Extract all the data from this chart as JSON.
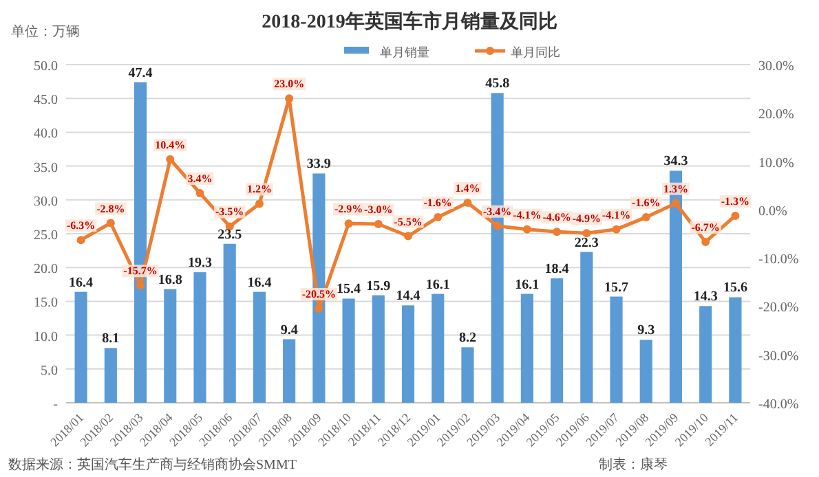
{
  "chart_data": {
    "type": "bar",
    "title": "2018-2019年英国车市月销量及同比",
    "ylabel": "单位：万辆",
    "categories": [
      "2018/01",
      "2018/02",
      "2018/03",
      "2018/04",
      "2018/05",
      "2018/06",
      "2018/07",
      "2018/08",
      "2018/09",
      "2018/10",
      "2018/11",
      "2018/12",
      "2019/01",
      "2019/02",
      "2019/03",
      "2019/04",
      "2019/05",
      "2019/06",
      "2019/07",
      "2019/08",
      "2019/09",
      "2019/10",
      "2019/11"
    ],
    "series": [
      {
        "name": "单月销量",
        "color": "#5b9bd5",
        "values": [
          16.4,
          8.1,
          47.4,
          16.8,
          19.3,
          23.5,
          16.4,
          9.4,
          33.9,
          15.4,
          15.9,
          14.4,
          16.1,
          8.2,
          45.8,
          16.1,
          18.4,
          22.3,
          15.7,
          9.3,
          34.3,
          14.3,
          15.6
        ],
        "value_labels": [
          "16.4",
          "8.1",
          "47.4",
          "16.8",
          "19.3",
          "23.5",
          "16.4",
          "9.4",
          "33.9",
          "15.4",
          "15.9",
          "14.4",
          "16.1",
          "8.2",
          "45.8",
          "16.1",
          "18.4",
          "22.3",
          "15.7",
          "9.3",
          "34.3",
          "14.3",
          "15.6"
        ]
      },
      {
        "name": "单月同比",
        "type": "line",
        "axis": "y2",
        "color": "#ed7d31",
        "marker": "circle",
        "values": [
          -6.3,
          -2.8,
          -15.7,
          10.4,
          3.4,
          -3.5,
          1.2,
          23.0,
          -20.5,
          -2.9,
          -3.0,
          -5.5,
          -1.6,
          1.4,
          -3.4,
          -4.1,
          -4.6,
          -4.9,
          -4.1,
          -1.6,
          1.3,
          -6.7,
          -1.3
        ],
        "value_labels": [
          "-6.3%",
          "-2.8%",
          "-15.7%",
          "10.4%",
          "3.4%",
          "-3.5%",
          "1.2%",
          "23.0%",
          "-20.5%",
          "-2.9%",
          "-3.0%",
          "-5.5%",
          "-1.6%",
          "1.4%",
          "-3.4%",
          "-4.1%",
          "-4.6%",
          "-4.9%",
          "-4.1%",
          "-1.6%",
          "1.3%",
          "-6.7%",
          "-1.3%"
        ]
      }
    ],
    "ylim": [
      0,
      50
    ],
    "yticks": [
      {
        "value": 0,
        "label": "-"
      },
      {
        "value": 5,
        "label": "5.0"
      },
      {
        "value": 10,
        "label": "10.0"
      },
      {
        "value": 15,
        "label": "15.0"
      },
      {
        "value": 20,
        "label": "20.0"
      },
      {
        "value": 25,
        "label": "25.0"
      },
      {
        "value": 30,
        "label": "30.0"
      },
      {
        "value": 35,
        "label": "35.0"
      },
      {
        "value": 40,
        "label": "40.0"
      },
      {
        "value": 45,
        "label": "45.0"
      },
      {
        "value": 50,
        "label": "50.0"
      }
    ],
    "y2lim": [
      -40,
      30
    ],
    "y2ticks": [
      {
        "value": -40,
        "label": "-40.0%"
      },
      {
        "value": -30,
        "label": "-30.0%"
      },
      {
        "value": -20,
        "label": "-20.0%"
      },
      {
        "value": -10,
        "label": "-10.0%"
      },
      {
        "value": 0,
        "label": "0.0%"
      },
      {
        "value": 10,
        "label": "10.0%"
      },
      {
        "value": 20,
        "label": "20.0%"
      },
      {
        "value": 30,
        "label": "30.0%"
      }
    ],
    "grid": "y",
    "legend": "top",
    "annotations": [
      "数据来源：英国汽车生产商与经销商协会SMMT",
      "制表：康琴"
    ]
  }
}
